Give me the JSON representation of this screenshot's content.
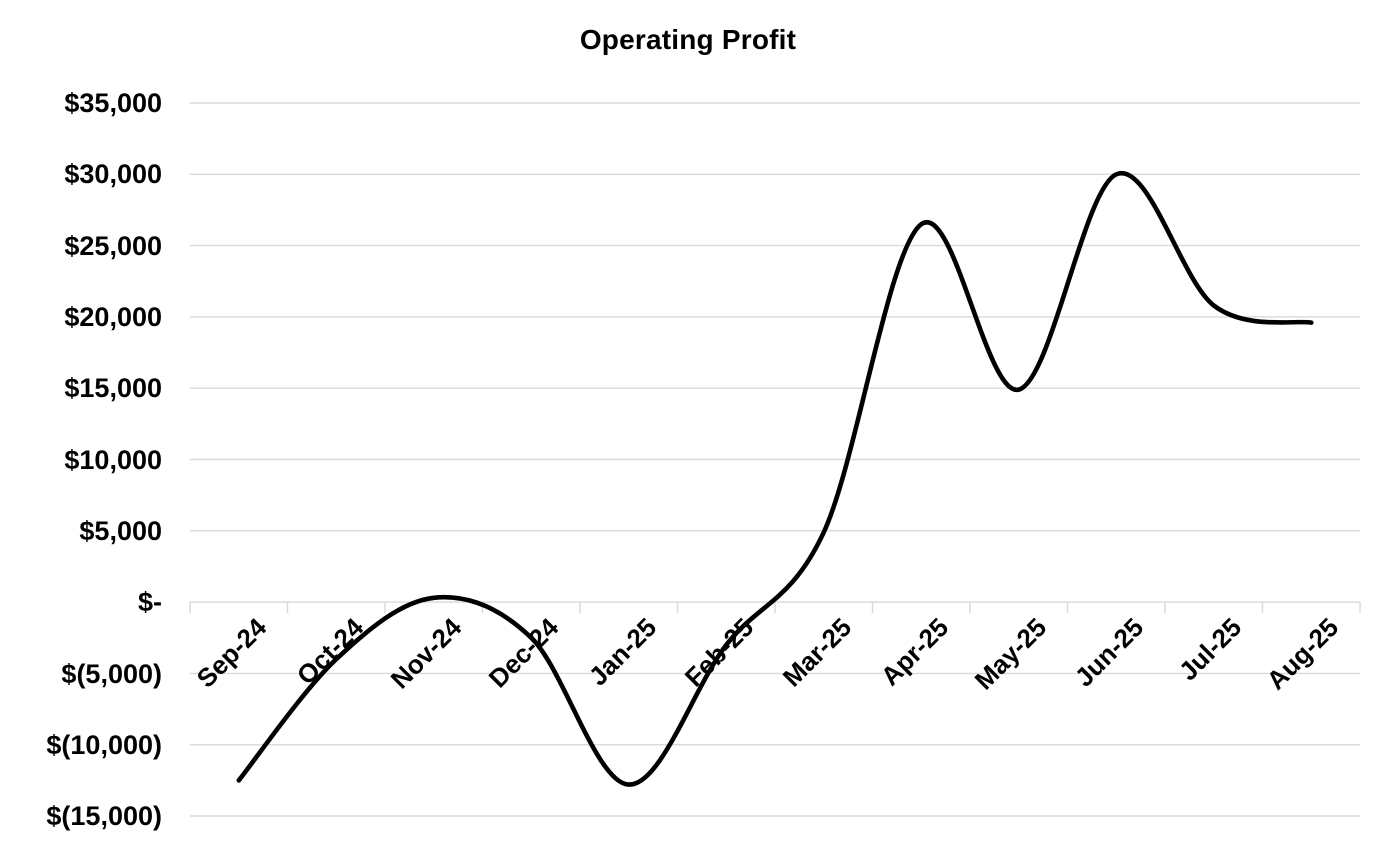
{
  "chart_data": {
    "type": "line",
    "title": "Operating Profit",
    "categories": [
      "Sep-24",
      "Oct-24",
      "Nov-24",
      "Dec-24",
      "Jan-25",
      "Feb-25",
      "Mar-25",
      "Apr-25",
      "May-25",
      "Jun-25",
      "Jul-25",
      "Aug-25"
    ],
    "values": [
      -12500,
      -4000,
      300,
      -2500,
      -12800,
      -3000,
      4900,
      26500,
      14900,
      30000,
      20800,
      19600
    ],
    "xlabel": "",
    "ylabel": "",
    "ylim": [
      -15000,
      35000
    ],
    "y_tick_step": 5000,
    "y_tick_labels": [
      "$35,000",
      "$30,000",
      "$25,000",
      "$20,000",
      "$15,000",
      "$10,000",
      "$5,000",
      "$-",
      "$(5,000)",
      "$(10,000)",
      "$(15,000)"
    ],
    "grid": true,
    "legend": false,
    "smooth": true,
    "line_color": "#000000",
    "gridline_color": "#d9d9d9",
    "background_color": "#ffffff",
    "text_color": "#000000"
  }
}
